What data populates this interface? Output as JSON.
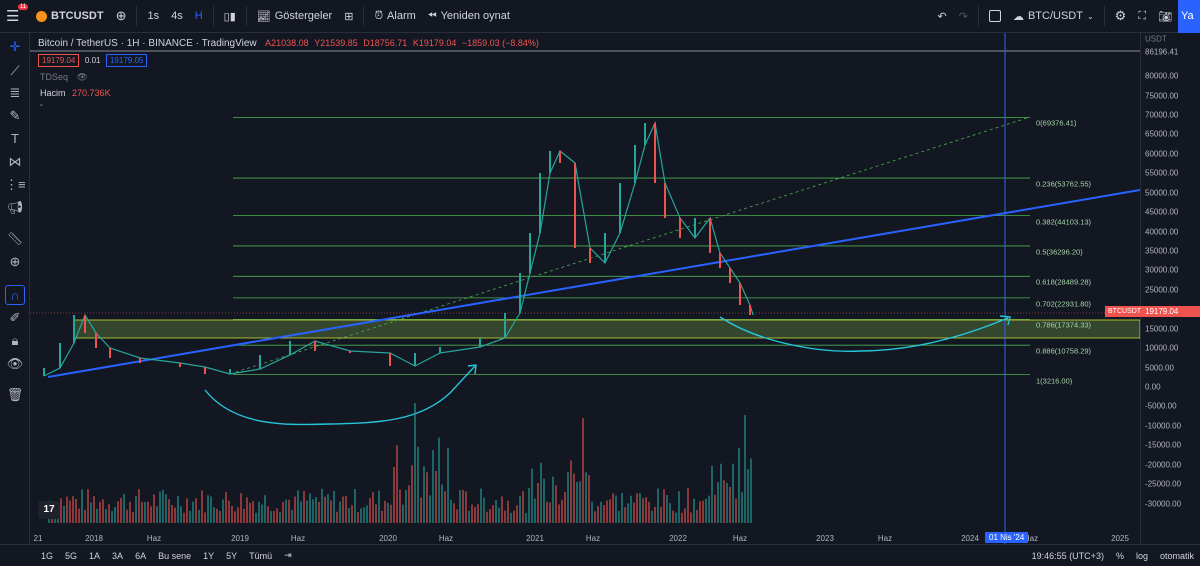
{
  "top": {
    "symbol": "BTCUSDT",
    "badge": "11",
    "intervals": [
      "1s",
      "4s",
      "H"
    ],
    "active_interval": "H",
    "indicators": "Göstergeler",
    "alarm": "Alarm",
    "replay": "Yeniden oynat",
    "pair": "BTC/USDT",
    "publish": "Ya"
  },
  "legend": {
    "title": "Bitcoin / TetherUS · 1H · BINANCE · TradingView",
    "open": "A21038.08",
    "high": "Y21539.85",
    "low": "D18756.71",
    "close": "K19179.04",
    "change": "−1859.03 (−8.84%)",
    "bid": "19179.04",
    "spread": "0.01",
    "ask": "19179.05",
    "tdseq": "TDSeq",
    "volume_label": "Hacim",
    "volume_value": "270.736K"
  },
  "yaxis": {
    "currency": "USDT",
    "ticks": [
      "86196.41",
      "80000.00",
      "75000.00",
      "70000.00",
      "65000.00",
      "60000.00",
      "55000.00",
      "50000.00",
      "45000.00",
      "40000.00",
      "35000.00",
      "30000.00",
      "25000.00",
      "15000.00",
      "10000.00",
      "5000.00",
      "0.00",
      "-5000.00",
      "-10000.00",
      "-15000.00",
      "-20000.00",
      "-25000.00",
      "-30000.00"
    ],
    "price_tag": "19179.04",
    "symbol_tag": "BTCUSDT"
  },
  "fib": [
    {
      "label": "0(69376.41)",
      "price": 69376.41
    },
    {
      "label": "0.236(53762.55)",
      "price": 53762.55
    },
    {
      "label": "0.382(44103.13)",
      "price": 44103.13
    },
    {
      "label": "0.5(36296.20)",
      "price": 36296.2
    },
    {
      "label": "0.618(28489.28)",
      "price": 28489.28
    },
    {
      "label": "0.702(22931.80)",
      "price": 22931.8
    },
    {
      "label": "0.786(17374.33)",
      "price": 17374.33
    },
    {
      "label": "0.886(10758.29)",
      "price": 10758.29
    },
    {
      "label": "1(3216.00)",
      "price": 3216.0
    }
  ],
  "xaxis": {
    "labels": [
      "21",
      "2018",
      "Haz",
      "2019",
      "Haz",
      "2020",
      "Haz",
      "2021",
      "Haz",
      "2022",
      "Haz",
      "2023",
      "Haz",
      "2024",
      "Haz",
      "2025"
    ],
    "cursor_label": "01 Nis '24"
  },
  "bottom": {
    "ranges": [
      "1G",
      "5G",
      "1A",
      "3A",
      "6A",
      "Bu sene",
      "1Y",
      "5Y",
      "Tümü"
    ],
    "time": "19:46:55 (UTC+3)",
    "percent": "%",
    "log": "log",
    "auto": "otomatik"
  },
  "colors": {
    "bg": "#131722",
    "up": "#26a69a",
    "down": "#ef5350",
    "fib": "#4caf50",
    "trend": "#2962ff",
    "curve": "#26c6da"
  }
}
